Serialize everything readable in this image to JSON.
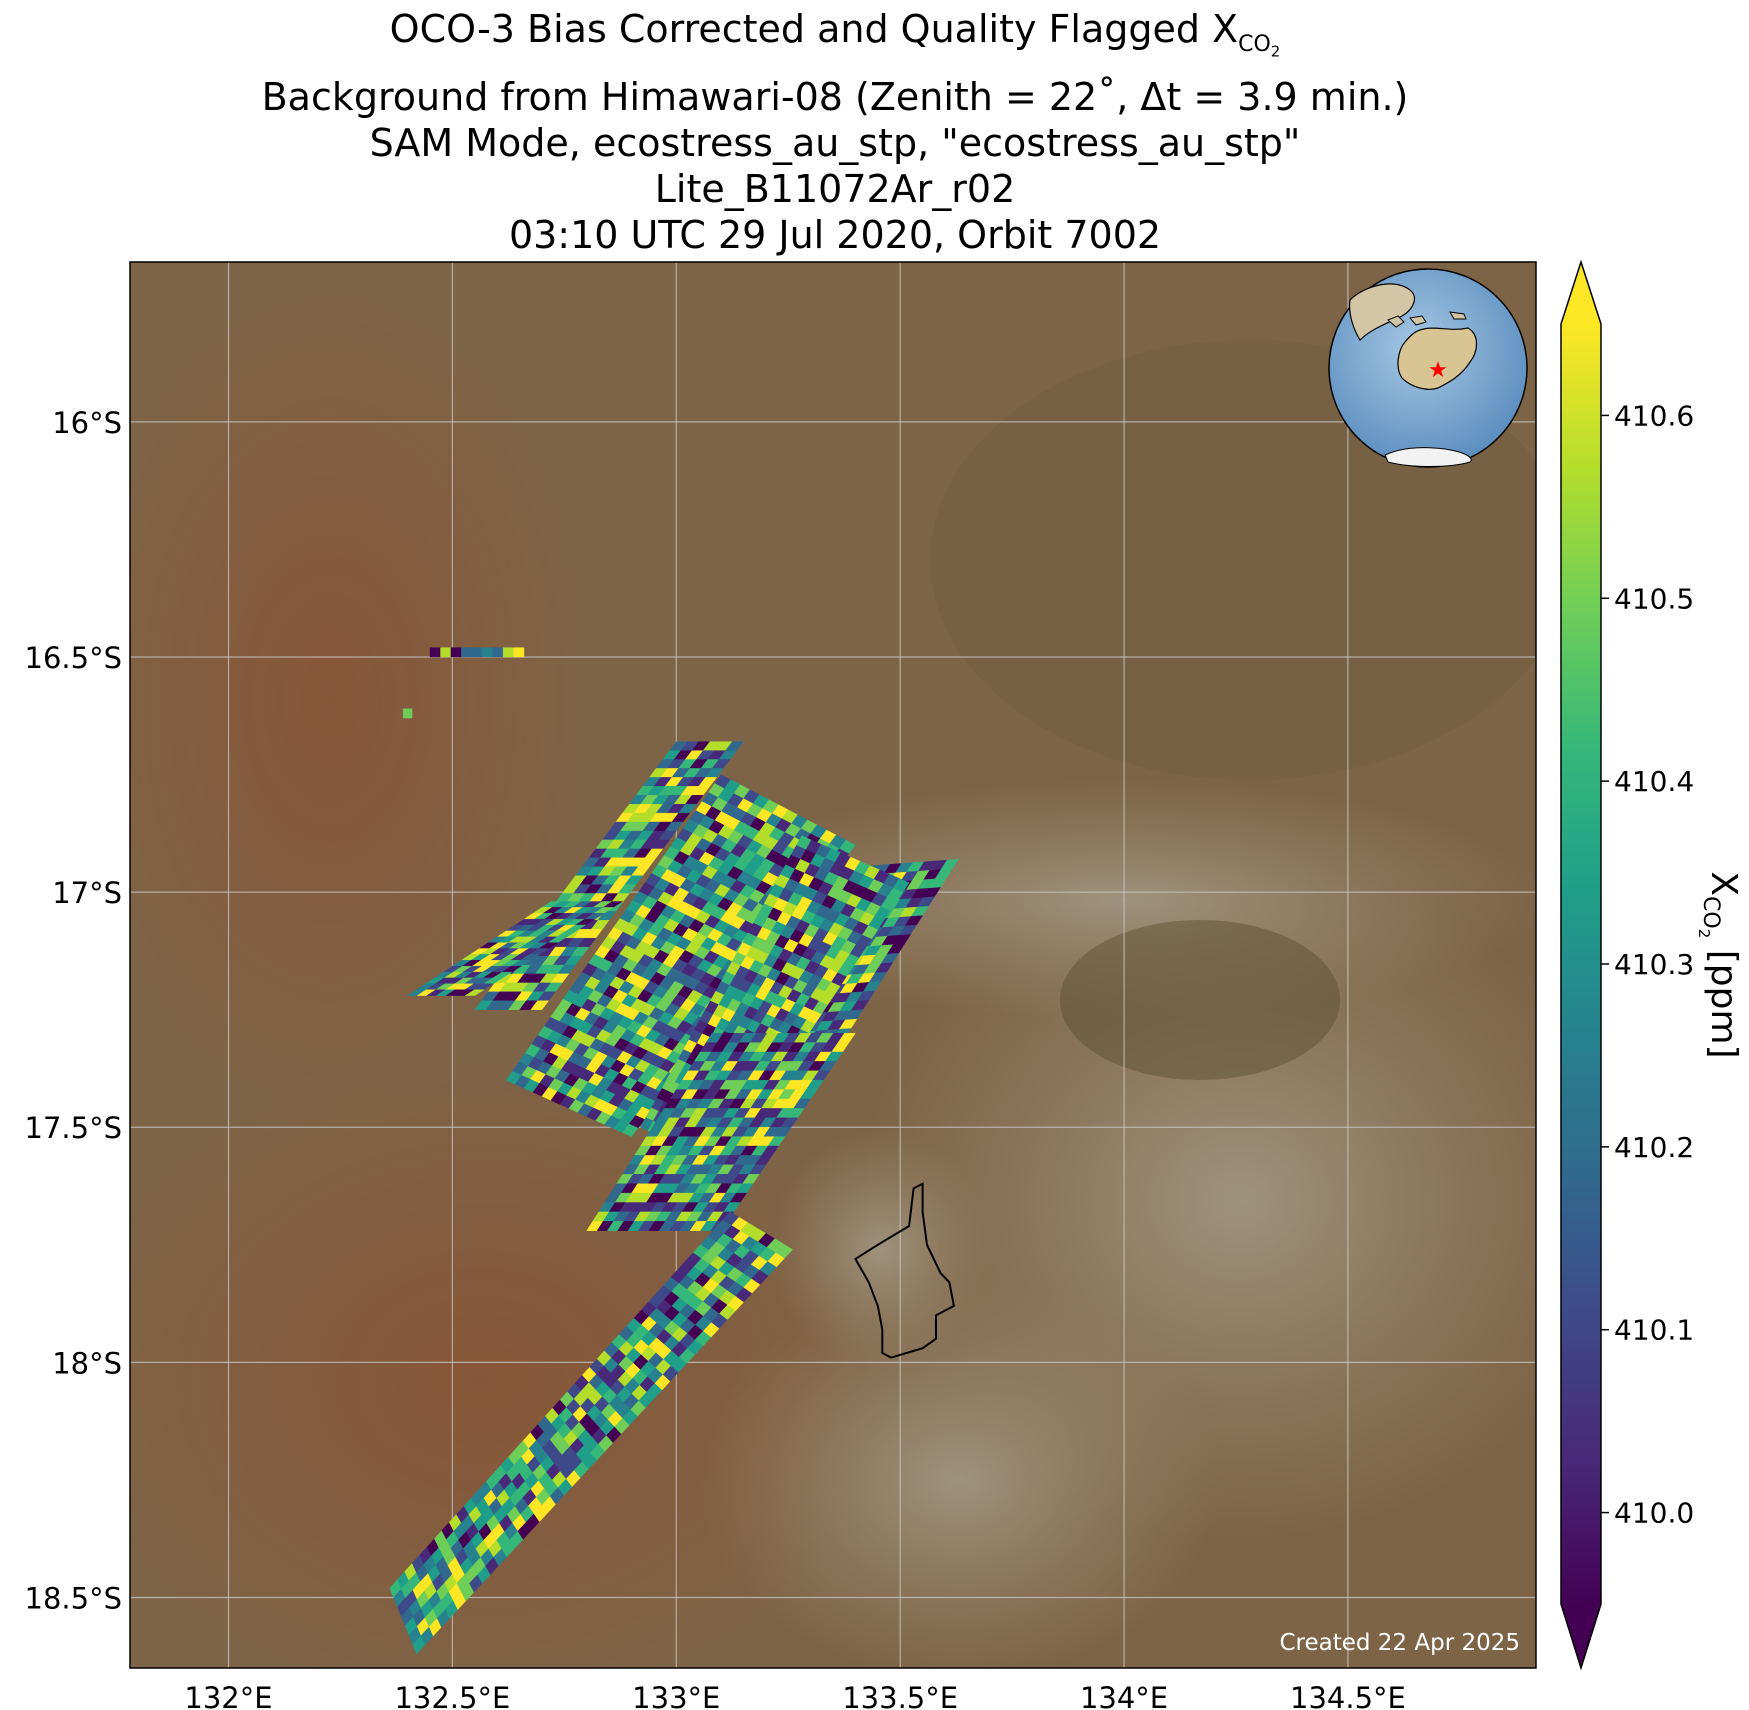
{
  "title": {
    "line1_text": "OCO-3 Bias Corrected and Quality Flagged X",
    "line1_sub": "CO",
    "line1_subsub": "2",
    "line2": "Background from Himawari-08 (Zenith = 22˚, Δt =  3.9 min.)",
    "line3": "SAM Mode, ecostress_au_stp, \"ecostress_au_stp\"",
    "line4": "Lite_B11072Ar_r02",
    "line5": "03:10 UTC 29 Jul 2020, Orbit 7002"
  },
  "map": {
    "lon_range": [
      131.78,
      134.92
    ],
    "lat_range": [
      -18.65,
      -15.66
    ],
    "lon_ticks": [
      {
        "value": 132.0,
        "label": "132°E"
      },
      {
        "value": 132.5,
        "label": "132.5°E"
      },
      {
        "value": 133.0,
        "label": "133°E"
      },
      {
        "value": 133.5,
        "label": "133.5°E"
      },
      {
        "value": 134.0,
        "label": "134°E"
      },
      {
        "value": 134.5,
        "label": "134.5°E"
      }
    ],
    "lat_ticks": [
      {
        "value": -16.0,
        "label": "16°S"
      },
      {
        "value": -16.5,
        "label": "16.5°S"
      },
      {
        "value": -17.0,
        "label": "17°S"
      },
      {
        "value": -17.5,
        "label": "17.5°S"
      },
      {
        "value": -18.0,
        "label": "18°S"
      },
      {
        "value": -18.5,
        "label": "18.5°S"
      }
    ],
    "background": "satellite imagery (Himawari-08), arid terrain",
    "target_outline": [
      [
        133.55,
        -17.62
      ],
      [
        133.53,
        -17.63
      ],
      [
        133.52,
        -17.71
      ],
      [
        133.45,
        -17.75
      ],
      [
        133.4,
        -17.78
      ],
      [
        133.43,
        -17.83
      ],
      [
        133.45,
        -17.88
      ],
      [
        133.46,
        -17.93
      ],
      [
        133.46,
        -17.98
      ],
      [
        133.48,
        -17.99
      ],
      [
        133.55,
        -17.97
      ],
      [
        133.58,
        -17.95
      ],
      [
        133.58,
        -17.9
      ],
      [
        133.62,
        -17.88
      ],
      [
        133.61,
        -17.83
      ],
      [
        133.59,
        -17.81
      ],
      [
        133.56,
        -17.75
      ],
      [
        133.55,
        -17.68
      ]
    ],
    "swaths": [
      {
        "corners": [
          [
            132.45,
            -16.48
          ],
          [
            132.66,
            -16.48
          ],
          [
            132.66,
            -16.5
          ],
          [
            132.45,
            -16.5
          ]
        ]
      },
      {
        "corners": [
          [
            132.39,
            -16.61
          ],
          [
            132.41,
            -16.61
          ],
          [
            132.41,
            -16.63
          ],
          [
            132.39,
            -16.63
          ]
        ]
      },
      {
        "corners": [
          [
            133.0,
            -16.68
          ],
          [
            133.15,
            -16.68
          ],
          [
            132.7,
            -17.25
          ],
          [
            132.55,
            -17.25
          ]
        ]
      },
      {
        "corners": [
          [
            133.1,
            -16.75
          ],
          [
            133.4,
            -16.9
          ],
          [
            132.9,
            -17.52
          ],
          [
            132.62,
            -17.4
          ]
        ]
      },
      {
        "corners": [
          [
            132.72,
            -17.02
          ],
          [
            132.88,
            -17.02
          ],
          [
            132.55,
            -17.22
          ],
          [
            132.4,
            -17.22
          ]
        ]
      },
      {
        "corners": [
          [
            133.35,
            -16.95
          ],
          [
            133.63,
            -16.93
          ],
          [
            133.35,
            -17.35
          ],
          [
            133.06,
            -17.37
          ]
        ]
      },
      {
        "corners": [
          [
            133.28,
            -16.88
          ],
          [
            133.52,
            -16.98
          ],
          [
            133.1,
            -17.58
          ],
          [
            132.92,
            -17.5
          ]
        ]
      },
      {
        "corners": [
          [
            133.08,
            -17.3
          ],
          [
            133.4,
            -17.3
          ],
          [
            133.1,
            -17.72
          ],
          [
            132.8,
            -17.72
          ]
        ]
      },
      {
        "corners": [
          [
            133.12,
            -17.68
          ],
          [
            133.26,
            -17.76
          ],
          [
            132.42,
            -18.62
          ],
          [
            132.36,
            -18.48
          ]
        ]
      }
    ],
    "inset_globe": {
      "label": "globe-locator",
      "marker_lon": 133.3,
      "marker_lat": -17.3
    },
    "credit": "Created 22 Apr 2025"
  },
  "colorbar": {
    "colormap": "viridis",
    "range": [
      409.95,
      410.65
    ],
    "ticks": [
      {
        "value": 410.0,
        "label": "410.0"
      },
      {
        "value": 410.1,
        "label": "410.1"
      },
      {
        "value": 410.2,
        "label": "410.2"
      },
      {
        "value": 410.3,
        "label": "410.3"
      },
      {
        "value": 410.4,
        "label": "410.4"
      },
      {
        "value": 410.5,
        "label": "410.5"
      },
      {
        "value": 410.6,
        "label": "410.6"
      }
    ],
    "label_text": "X",
    "label_sub": "CO",
    "label_subsub": "2",
    "label_unit": " [ppm]",
    "extend": "both"
  },
  "colors": {
    "viridis": [
      "#440154",
      "#482878",
      "#3e4989",
      "#31688e",
      "#26828e",
      "#1f9e89",
      "#35b779",
      "#6ece58",
      "#b5de2b",
      "#fde725"
    ]
  }
}
